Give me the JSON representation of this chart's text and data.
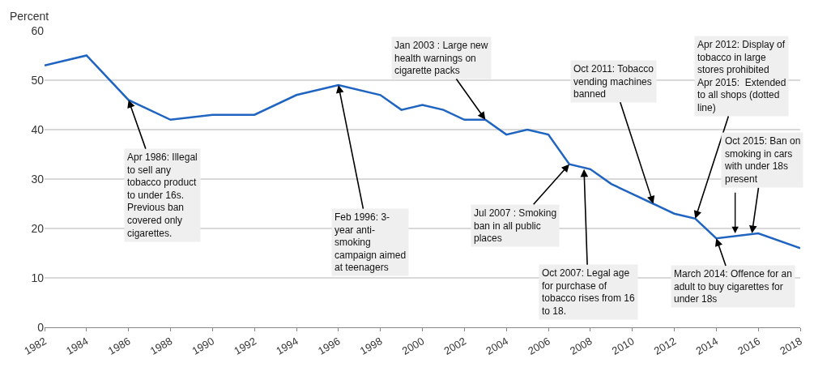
{
  "chart_data": {
    "type": "line",
    "ylabel": "Percent",
    "x": [
      1982,
      1984,
      1986,
      1988,
      1990,
      1992,
      1994,
      1996,
      1998,
      1999,
      2000,
      2001,
      2002,
      2003,
      2004,
      2005,
      2006,
      2007,
      2008,
      2009,
      2010,
      2011,
      2012,
      2013,
      2014,
      2016,
      2018
    ],
    "series": [
      {
        "color": "#1f64c0",
        "values": [
          53,
          55,
          46,
          42,
          43,
          43,
          47,
          49,
          47,
          44,
          45,
          44,
          42,
          42,
          39,
          40,
          39,
          33,
          32,
          29,
          27,
          25,
          23,
          22,
          18,
          19,
          16
        ]
      }
    ],
    "xlim": [
      1982,
      2018
    ],
    "xticks": [
      1982,
      1984,
      1986,
      1988,
      1990,
      1992,
      1994,
      1996,
      1998,
      2000,
      2002,
      2004,
      2006,
      2008,
      2010,
      2012,
      2014,
      2016,
      2018
    ],
    "ylim": [
      0,
      60
    ],
    "yticks": [
      0,
      10,
      20,
      30,
      40,
      50,
      60
    ],
    "grid": "y",
    "marker": "none",
    "line_style": "solid",
    "annotations": [
      {
        "text": "Apr 1986: Illegal\nto sell any\ntobacco product\nto under 16s.\nPrevious ban\ncovered only\ncigarettes.",
        "x": 1986,
        "y": 46
      },
      {
        "text": "Feb 1996: 3-\nyear anti-\nsmoking\ncampaign aimed\nat teenagers",
        "x": 1996,
        "y": 49
      },
      {
        "text": "Jan 2003 : Large new\nhealth warnings on\ncigarette packs",
        "x": 2003,
        "y": 42
      },
      {
        "text": "Jul 2007 : Smoking\nban in all public\nplaces",
        "x": 2007,
        "y": 33
      },
      {
        "text": "Oct 2007: Legal age\nfor purchase of\ntobacco rises from 16\nto 18.",
        "x": 2007.7,
        "y": 32
      },
      {
        "text": "Oct 2011: Tobacco\nvending machines\nbanned",
        "x": 2011,
        "y": 25
      },
      {
        "text": "Apr 2012: Display of\ntobacco in large\nstores prohibited\nApr 2015:  Extended\nto all shops (dotted\nline)",
        "x": 2013,
        "y": 22
      },
      {
        "text": "Oct 2015: Ban on\nsmoking in cars\nwith under 18s\npresent",
        "x": 2015.7,
        "y": 19
      },
      {
        "text": "March 2014: Offence for an\nadult to buy cigarettes for\nunder 18s",
        "x": 2014,
        "y": 18
      }
    ]
  }
}
